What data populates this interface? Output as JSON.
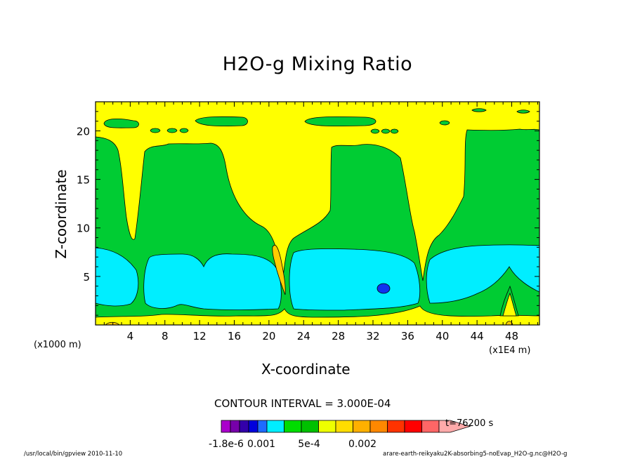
{
  "chart_data": {
    "type": "heatmap",
    "title": "H2O-g Mixing Ratio",
    "xlabel": "X-coordinate",
    "ylabel": "Z-coordinate",
    "x_unit_label": "(x1000 m)",
    "x_scale_label": "(x1E4 m)",
    "xlim": [
      0,
      51.2
    ],
    "ylim": [
      0,
      23
    ],
    "xticks": [
      4,
      8,
      12,
      16,
      20,
      24,
      28,
      32,
      36,
      40,
      44,
      48
    ],
    "yticks": [
      5,
      10,
      15,
      20
    ],
    "contour_interval_label": "CONTOUR INTERVAL = 3.000E-04",
    "time_label": "t=76200 s",
    "colorbar_labels": [
      {
        "text": "-1.8e-6",
        "value": -1.8e-06
      },
      {
        "text": "0.001",
        "value": 0.001
      },
      {
        "text": "5e-4",
        "value": 0.0005
      },
      {
        "text": "0.002",
        "value": 0.002
      }
    ],
    "colorbar_colors": [
      "#aa00cc",
      "#7700aa",
      "#3300aa",
      "#0000dd",
      "#1e6bff",
      "#00eeff",
      "#00dd00",
      "#00c000",
      "#eeff00",
      "#ffdd00",
      "#ffb000",
      "#ff8800",
      "#ff3300",
      "#ff0000",
      "#ff6666",
      "#ffaaaa"
    ],
    "level_colors": {
      "near_zero": "#ffff00",
      "low": "#00cc33",
      "mid": "#00eeff",
      "high": "#1133ee",
      "boundary_low": "#ffcc00",
      "boundary_high": "#ff9900"
    }
  },
  "footer": {
    "left": "/usr/local/bin/gpview  2010-11-10",
    "right": "arare-earth-reikyaku2K-absorbing5-noEvap_H2O-g.nc@H2O-g"
  }
}
